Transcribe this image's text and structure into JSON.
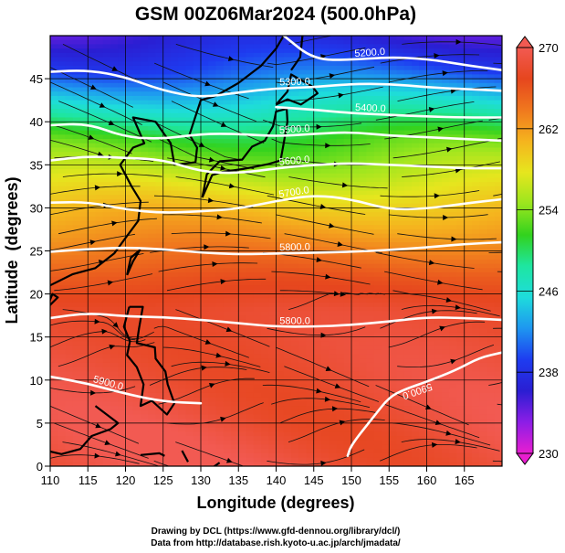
{
  "chart_data": {
    "type": "heatmap",
    "title": "GSM 00Z06Mar2024 (500.0hPa)",
    "xlabel": "Longitude (degrees)",
    "ylabel": "Latitude  (degrees)",
    "xlim": [
      110,
      170
    ],
    "ylim": [
      0,
      50
    ],
    "x_ticks": [
      110,
      115,
      120,
      125,
      130,
      135,
      140,
      145,
      150,
      155,
      160,
      165
    ],
    "y_ticks": [
      0,
      5,
      10,
      15,
      20,
      25,
      30,
      35,
      40,
      45
    ],
    "colorbar": {
      "min": 230,
      "max": 270,
      "ticks": [
        230,
        238,
        246,
        254,
        262,
        270
      ],
      "colors": [
        "#e81ed0",
        "#8c1ee6",
        "#2a1ed2",
        "#1e3cf0",
        "#1e96f0",
        "#1edcdc",
        "#1ee6a0",
        "#32d21e",
        "#9ae61e",
        "#e6e61e",
        "#f5b41e",
        "#f0781e",
        "#e6461e",
        "#f25a52"
      ],
      "position": "right"
    },
    "temperature_rows": [
      {
        "lat": 50,
        "value": 236
      },
      {
        "lat": 46,
        "value": 240
      },
      {
        "lat": 42,
        "value": 246
      },
      {
        "lat": 38,
        "value": 252
      },
      {
        "lat": 34,
        "value": 256
      },
      {
        "lat": 30,
        "value": 260
      },
      {
        "lat": 26,
        "value": 263
      },
      {
        "lat": 22,
        "value": 266
      },
      {
        "lat": 18,
        "value": 268
      },
      {
        "lat": 0,
        "value": 269
      }
    ],
    "height_contours": [
      {
        "label": "5200.0",
        "points": [
          [
            141,
            50
          ],
          [
            145,
            47.2
          ],
          [
            150,
            47.2
          ],
          [
            155,
            47.5
          ],
          [
            160,
            47.3
          ],
          [
            165,
            46.6
          ],
          [
            170,
            46.0
          ]
        ]
      },
      {
        "label": "5300.0",
        "points": [
          [
            110,
            45.8
          ],
          [
            115,
            46.0
          ],
          [
            120,
            45.2
          ],
          [
            125,
            43.6
          ],
          [
            130,
            42.8
          ],
          [
            135,
            43.4
          ],
          [
            140,
            43.9
          ],
          [
            145,
            44.0
          ],
          [
            150,
            44.4
          ],
          [
            155,
            44.4
          ],
          [
            160,
            44.0
          ],
          [
            165,
            43.8
          ],
          [
            170,
            43.6
          ]
        ]
      },
      {
        "label": "5400.0",
        "points": [
          [
            140,
            41.7
          ],
          [
            145,
            41.4
          ],
          [
            150,
            41.0
          ],
          [
            155,
            40.8
          ],
          [
            160,
            40.6
          ],
          [
            165,
            40.5
          ],
          [
            170,
            40.5
          ]
        ]
      },
      {
        "label": "5500.0",
        "points": [
          [
            110,
            39.6
          ],
          [
            115,
            39.8
          ],
          [
            120,
            38.2
          ],
          [
            125,
            38.0
          ],
          [
            130,
            38.6
          ],
          [
            135,
            38.6
          ],
          [
            140,
            38.3
          ],
          [
            145,
            38.6
          ],
          [
            150,
            38.8
          ],
          [
            155,
            38.4
          ],
          [
            160,
            38.2
          ],
          [
            165,
            38.0
          ],
          [
            170,
            37.8
          ]
        ]
      },
      {
        "label": "5600.0",
        "points": [
          [
            110,
            35.5
          ],
          [
            115,
            36.0
          ],
          [
            120,
            35.8
          ],
          [
            125,
            35.6
          ],
          [
            130,
            34.2
          ],
          [
            135,
            34.0
          ],
          [
            140,
            34.6
          ],
          [
            145,
            35.0
          ],
          [
            150,
            35.2
          ],
          [
            155,
            35.0
          ],
          [
            160,
            34.8
          ],
          [
            165,
            34.6
          ],
          [
            170,
            34.6
          ]
        ]
      },
      {
        "label": "5700.0",
        "points": [
          [
            110,
            30.6
          ],
          [
            115,
            30.7
          ],
          [
            120,
            29.8
          ],
          [
            125,
            29.4
          ],
          [
            130,
            29.6
          ],
          [
            135,
            29.9
          ],
          [
            140,
            30.8
          ],
          [
            145,
            31.5
          ],
          [
            150,
            31.0
          ],
          [
            155,
            29.8
          ],
          [
            160,
            29.9
          ],
          [
            165,
            30.5
          ],
          [
            170,
            31.0
          ]
        ]
      },
      {
        "label": "5800.0",
        "points": [
          [
            110,
            24.9
          ],
          [
            115,
            25.2
          ],
          [
            120,
            25.4
          ],
          [
            125,
            25.2
          ],
          [
            130,
            24.8
          ],
          [
            135,
            24.6
          ],
          [
            140,
            24.7
          ],
          [
            145,
            24.8
          ],
          [
            150,
            24.9
          ],
          [
            155,
            25.1
          ],
          [
            160,
            25.4
          ],
          [
            165,
            25.8
          ],
          [
            170,
            26.0
          ]
        ]
      },
      {
        "label": "5800.0",
        "points": [
          [
            110,
            17.2
          ],
          [
            115,
            17.8
          ],
          [
            120,
            17.4
          ],
          [
            125,
            17.3
          ],
          [
            130,
            17.0
          ],
          [
            135,
            16.6
          ],
          [
            140,
            16.2
          ],
          [
            145,
            16.2
          ],
          [
            150,
            16.4
          ],
          [
            155,
            16.8
          ],
          [
            160,
            17.3
          ],
          [
            165,
            17.2
          ],
          [
            170,
            17.0
          ]
        ]
      },
      {
        "label": "5900.0",
        "points": [
          [
            110,
            10.4
          ],
          [
            115,
            9.6
          ],
          [
            120,
            8.4
          ],
          [
            125,
            7.5
          ],
          [
            130,
            7.3
          ]
        ]
      },
      {
        "label": "5900.0",
        "points": [
          [
            170,
            13.2
          ],
          [
            167,
            12.6
          ],
          [
            164,
            11.2
          ],
          [
            160,
            9.8
          ],
          [
            157,
            8.9
          ],
          [
            155,
            8.0
          ],
          [
            153,
            5.8
          ],
          [
            150,
            2.5
          ],
          [
            149.5,
            1.2
          ]
        ]
      }
    ],
    "wind_field": "streamlines"
  },
  "credits": {
    "line1": "Drawing by DCL (https://www.gfd-dennou.org/library/dcl/)",
    "line2": "Data from http://database.rish.kyoto-u.ac.jp/arch/jmadata/"
  }
}
